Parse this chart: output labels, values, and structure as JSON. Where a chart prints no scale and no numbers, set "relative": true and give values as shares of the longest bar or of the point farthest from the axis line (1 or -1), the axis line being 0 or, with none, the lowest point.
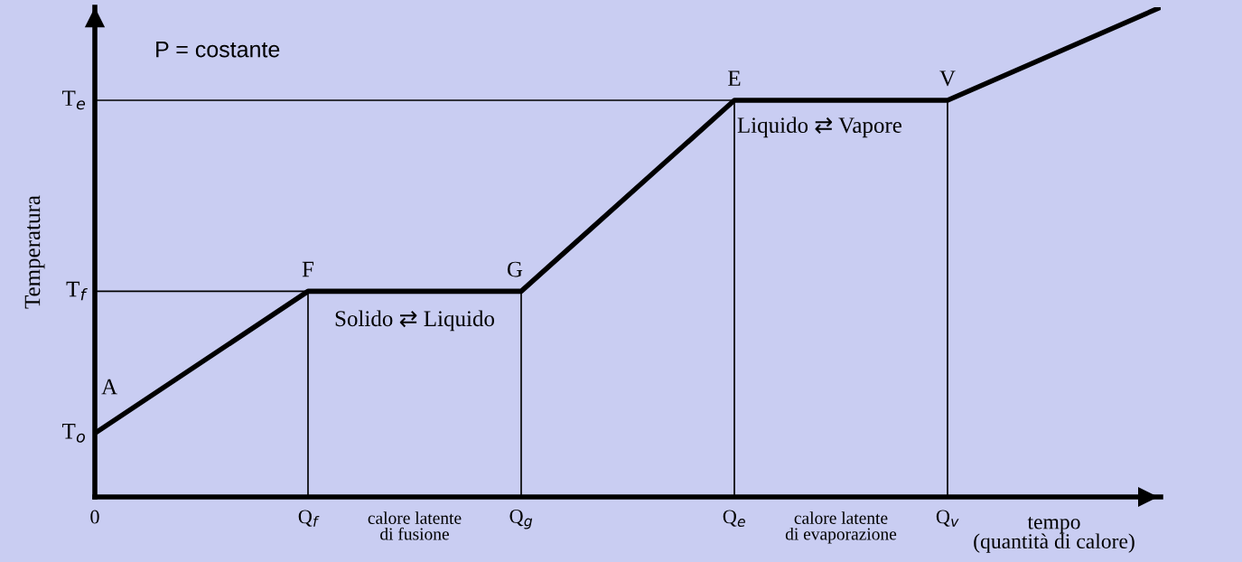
{
  "chart_data": {
    "type": "line",
    "relative": true,
    "ylabel": "Temperatura",
    "xlabel": "tempo\n(quantità di calore)",
    "categories": [
      "0",
      "Q$_{f}$",
      "Q$_{g}$",
      "Q$_{e}$",
      "Q$_{v}$",
      null
    ],
    "series": [
      {
        "color": "#000000",
        "values": [
          0.13,
          0.42,
          0.42,
          0.81,
          0.81,
          1
        ]
      }
    ],
    "ref_lines": [
      {
        "axis": "y",
        "value": 0.42,
        "label": "T$_{f}$",
        "color": "#000000"
      },
      {
        "axis": "y",
        "value": 0.81,
        "label": "T$_{e}$",
        "color": "#000000"
      },
      {
        "axis": "x",
        "value": "Q$_{f}$",
        "color": "#000000"
      },
      {
        "axis": "x",
        "value": "Q$_{g}$",
        "color": "#000000"
      },
      {
        "axis": "x",
        "value": "Q$_{e}$",
        "color": "#000000"
      },
      {
        "axis": "x",
        "value": "Q$_{v}$",
        "color": "#000000"
      }
    ],
    "annotations": [
      {
        "text": "T$_{o}$",
        "x": "0",
        "y": 0.13
      },
      {
        "text": "A",
        "x": "0",
        "y": 0.13
      },
      {
        "text": "F",
        "x": "Q$_{f}$",
        "y": 0.42
      },
      {
        "text": "G",
        "x": "Q$_{g}$",
        "y": 0.42
      },
      {
        "text": "E",
        "x": "Q$_{e}$",
        "y": 0.81
      },
      {
        "text": "V",
        "x": "Q$_{v}$",
        "y": 0.81
      },
      "P = costante",
      "Solido ⇄ Liquido",
      "Liquido ⇄ Vapore",
      "calore latente\ndi fusione",
      "calore latente\ndi evaporazione"
    ],
    "grid": false,
    "marker": "none",
    "line_style": "solid"
  }
}
